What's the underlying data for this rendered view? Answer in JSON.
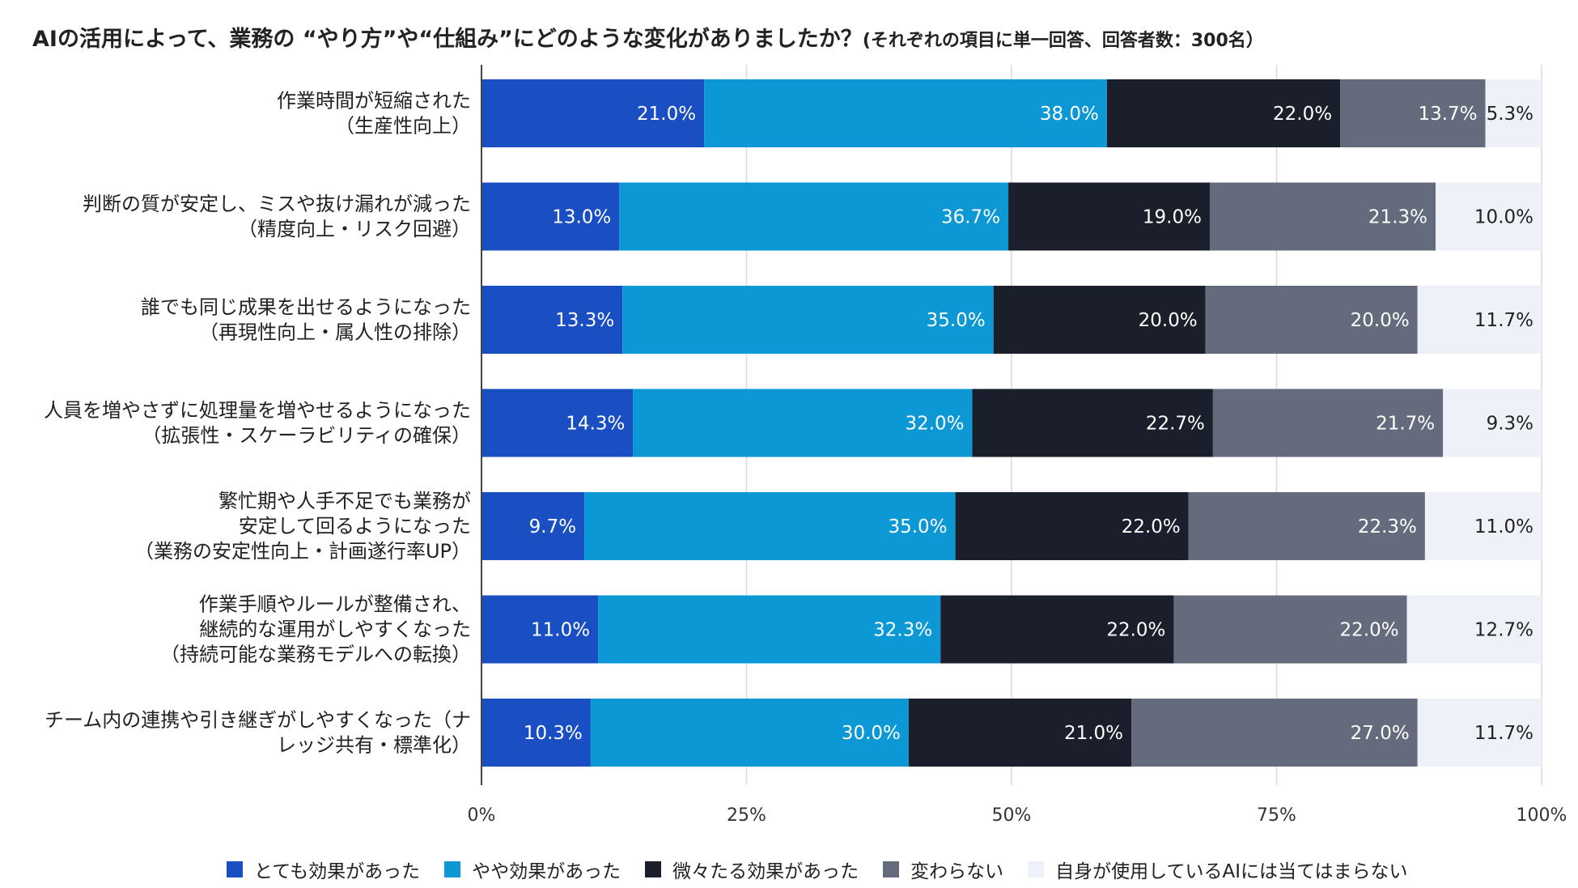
{
  "title": "AIの活用によって、業務の “やり方”や“仕組み”にどのような変化がありましたか？",
  "subtitle": "(それぞれの項目に単一回答、回答者数：300名）",
  "chart_data": {
    "type": "bar",
    "orientation": "horizontal",
    "stacked": true,
    "xlim": [
      0,
      100
    ],
    "xticks": [
      "0%",
      "25%",
      "50%",
      "75%",
      "100%"
    ],
    "categories": [
      [
        "作業時間が短縮された",
        "（生産性向上）"
      ],
      [
        "判断の質が安定し、ミスや抜け漏れが減った",
        "（精度向上・リスク回避）"
      ],
      [
        "誰でも同じ成果を出せるようになった",
        "（再現性向上・属人性の排除）"
      ],
      [
        "人員を増やさずに処理量を増やせるようになった",
        "（拡張性・スケーラビリティの確保）"
      ],
      [
        "繁忙期や人手不足でも業務が",
        "安定して回るようになった",
        "（業務の安定性向上・計画遂行率UP）"
      ],
      [
        "作業手順やルールが整備され、",
        "継続的な運用がしやすくなった",
        "（持続可能な業務モデルへの転換）"
      ],
      [
        "チーム内の連携や引き継ぎがしやすくなった（ナ",
        "レッジ共有・標準化）"
      ]
    ],
    "series": [
      {
        "name": "とても効果があった",
        "color": "#1a4fc4",
        "textColor": "#ffffff",
        "values": [
          21.0,
          13.0,
          13.3,
          14.3,
          9.7,
          11.0,
          10.3
        ]
      },
      {
        "name": "やや効果があった",
        "color": "#0b98d4",
        "textColor": "#ffffff",
        "values": [
          38.0,
          36.7,
          35.0,
          32.0,
          35.0,
          32.3,
          30.0
        ]
      },
      {
        "name": "微々たる効果があった",
        "color": "#1b1f2c",
        "textColor": "#ffffff",
        "values": [
          22.0,
          19.0,
          20.0,
          22.7,
          22.0,
          22.0,
          21.0
        ]
      },
      {
        "name": "変わらない",
        "color": "#636b7c",
        "textColor": "#ffffff",
        "values": [
          13.7,
          21.3,
          20.0,
          21.7,
          22.3,
          22.0,
          27.0
        ]
      },
      {
        "name": "自身が使用しているAIには当てはまらない",
        "color": "#eef1f7",
        "textColor": "#222222",
        "values": [
          5.3,
          10.0,
          11.7,
          9.3,
          11.0,
          12.7,
          11.7
        ]
      }
    ],
    "value_labels": [
      [
        "21.0%",
        "38.0%",
        "22.0%",
        "13.7%",
        "5.3%"
      ],
      [
        "13.0%",
        "36.7%",
        "19.0%",
        "21.3%",
        "10.0%"
      ],
      [
        "13.3%",
        "35.0%",
        "20.0%",
        "20.0%",
        "11.7%"
      ],
      [
        "14.3%",
        "32.0%",
        "22.7%",
        "21.7%",
        "9.3%"
      ],
      [
        "9.7%",
        "35.0%",
        "22.0%",
        "22.3%",
        "11.0%"
      ],
      [
        "11.0%",
        "32.3%",
        "22.0%",
        "22.0%",
        "12.7%"
      ],
      [
        "10.3%",
        "30.0%",
        "21.0%",
        "27.0%",
        "11.7%"
      ]
    ]
  },
  "legend": [
    {
      "label": "とても効果があった",
      "color": "#1a4fc4"
    },
    {
      "label": "やや効果があった",
      "color": "#0b98d4"
    },
    {
      "label": "微々たる効果があった",
      "color": "#1b1f2c"
    },
    {
      "label": "変わらない",
      "color": "#636b7c"
    },
    {
      "label": "自身が使用しているAIには当てはまらない",
      "color": "#eef1f7"
    }
  ]
}
